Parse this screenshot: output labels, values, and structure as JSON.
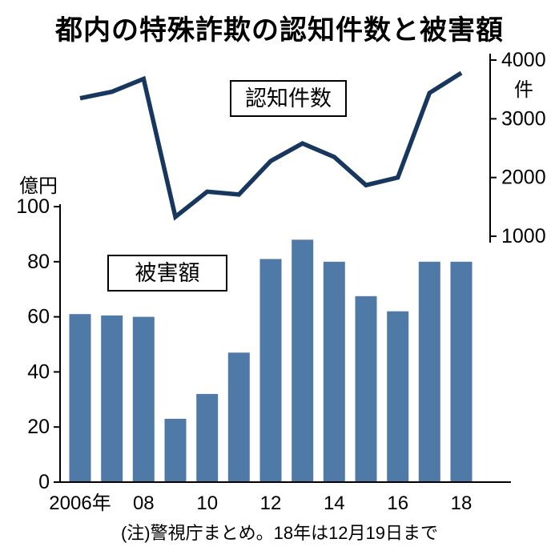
{
  "title": "都内の特殊詐欺の認知件数と被害額",
  "note": "(注)警視庁まとめ。18年は12月19日まで",
  "labels": {
    "line_series": "認知件数",
    "bar_series": "被害額",
    "left_axis_unit": "億円",
    "right_axis_unit": "件"
  },
  "colors": {
    "bar": "#4f7aa8",
    "line": "#17375e",
    "axis": "#000000",
    "background": "#ffffff"
  },
  "chart_data": {
    "type": "bar+line",
    "title": "都内の特殊詐欺の認知件数と被害額",
    "categories": [
      "2006",
      "2007",
      "2008",
      "2009",
      "2010",
      "2011",
      "2012",
      "2013",
      "2014",
      "2015",
      "2016",
      "2017",
      "2018"
    ],
    "x_tick_labels": [
      "2006年",
      "08",
      "10",
      "12",
      "14",
      "16",
      "18"
    ],
    "x_tick_indices": [
      0,
      2,
      4,
      6,
      8,
      10,
      12
    ],
    "series": [
      {
        "name": "被害額",
        "type": "bar",
        "axis": "left",
        "unit": "億円",
        "values": [
          61,
          60.5,
          60,
          23,
          32,
          47,
          81,
          88,
          80,
          67.5,
          62,
          80,
          80
        ]
      },
      {
        "name": "認知件数",
        "type": "line",
        "axis": "right",
        "unit": "件",
        "values": [
          3350,
          3460,
          3680,
          1330,
          1760,
          1710,
          2280,
          2580,
          2350,
          1870,
          2000,
          3440,
          3780
        ]
      }
    ],
    "left_axis": {
      "unit": "億円",
      "ticks": [
        100,
        80,
        60,
        40,
        20,
        0
      ],
      "ylim": [
        0,
        100
      ]
    },
    "right_axis": {
      "unit": "件",
      "ticks": [
        4000,
        3000,
        2000,
        1000
      ],
      "ylim": [
        1000,
        4000
      ]
    },
    "grid": false,
    "legend_position": "inline-boxes"
  }
}
